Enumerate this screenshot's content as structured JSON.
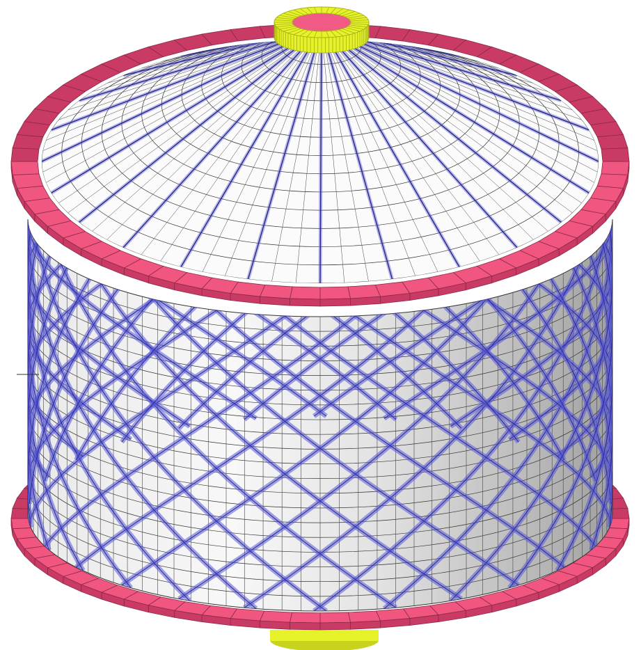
{
  "model": {
    "shell_mesh_lines": "#1a1a1a",
    "colors": {
      "ring_beam": "#f0567f",
      "ring_beam_dark": "#c93a64",
      "top_hub": "#e6f22a",
      "top_hub_dark": "#a8b316",
      "bracing": "#5a5ad8",
      "wall_light": "#f4f4f4",
      "wall_dark": "#a9a9a9",
      "roof": "#fbfbfb"
    }
  }
}
